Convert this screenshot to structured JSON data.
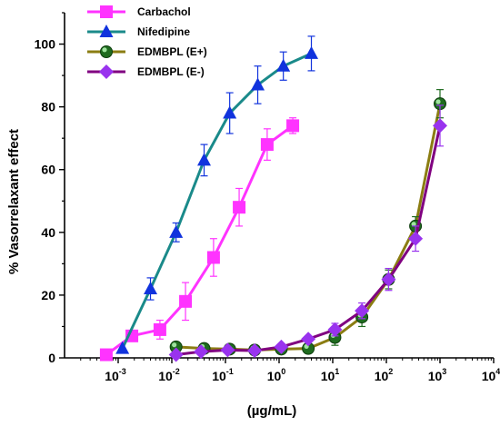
{
  "chart_data": {
    "type": "line",
    "xlabel": "(µg/mL)",
    "ylabel": "% Vasorrelaxant effect",
    "xscale": "log",
    "xlim": [
      0.0001,
      10000
    ],
    "ylim": [
      0,
      110
    ],
    "x_tick_labels": [
      {
        "base": "10",
        "exp": "-3"
      },
      {
        "base": "10",
        "exp": "-2"
      },
      {
        "base": "10",
        "exp": "-1"
      },
      {
        "base": "10",
        "exp": "0"
      },
      {
        "base": "10",
        "exp": "1"
      },
      {
        "base": "10",
        "exp": "2"
      },
      {
        "base": "10",
        "exp": "3"
      },
      {
        "base": "10",
        "exp": "4"
      }
    ],
    "x_tick_values": [
      0.001,
      0.01,
      0.1,
      1,
      10,
      100,
      1000,
      10000
    ],
    "y_ticks": [
      0,
      20,
      40,
      60,
      80,
      100
    ],
    "grid": false,
    "legend_position": "top-left",
    "series": [
      {
        "name": "Carbachol",
        "color": "#ff33ff",
        "marker": "square",
        "x": [
          0.0006,
          0.0018,
          0.006,
          0.018,
          0.06,
          0.18,
          0.6,
          1.8
        ],
        "y": [
          1,
          7,
          9,
          18,
          32,
          48,
          68,
          74
        ],
        "err": [
          0,
          0,
          3,
          6,
          6,
          6,
          5,
          2.5
        ]
      },
      {
        "name": "Nifedipine",
        "color": "#1a8a8a",
        "marker": "triangle",
        "x": [
          0.0012,
          0.004,
          0.012,
          0.04,
          0.12,
          0.4,
          1.2,
          4
        ],
        "y": [
          3,
          22,
          40,
          63,
          78,
          87,
          93,
          97
        ],
        "err": [
          0,
          3.5,
          3,
          5,
          6.5,
          6,
          4.5,
          5.5
        ]
      },
      {
        "name": "EDMBPL (E+)",
        "color": "#8b7d12",
        "marker": "circle",
        "x": [
          0.012,
          0.04,
          0.12,
          0.35,
          1.1,
          3.5,
          11,
          35,
          110,
          350,
          1000
        ],
        "y": [
          3.5,
          3,
          2.8,
          2.5,
          2.8,
          3,
          6.5,
          13,
          25,
          42,
          81
        ],
        "err": [
          0,
          0,
          0,
          0,
          0,
          0,
          2.5,
          3,
          3,
          3,
          4.5
        ]
      },
      {
        "name": "EDMBPL (E-)",
        "color": "#800080",
        "marker": "diamond",
        "x": [
          0.012,
          0.035,
          0.11,
          0.35,
          1.1,
          3.5,
          11,
          35,
          110,
          350,
          1000
        ],
        "y": [
          1,
          2,
          2.5,
          2.3,
          3.5,
          6,
          9,
          15,
          25,
          38,
          74
        ],
        "err": [
          0,
          0,
          0,
          0,
          0,
          0,
          2,
          2.5,
          3.5,
          4,
          6.5
        ]
      }
    ]
  }
}
